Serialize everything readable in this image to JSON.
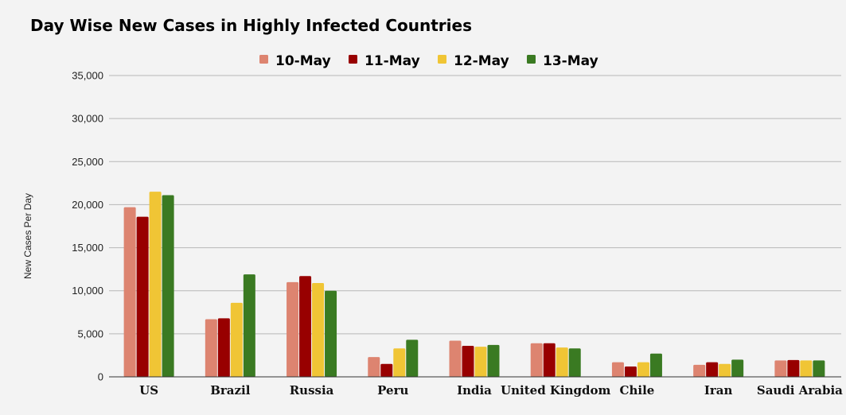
{
  "chart_data": {
    "type": "bar",
    "title": "Day Wise New Cases in Highly Infected Countries",
    "ylabel": "New Cases Per Day",
    "xlabel": "",
    "ylim": [
      0,
      35000
    ],
    "yticks": [
      0,
      5000,
      10000,
      15000,
      20000,
      25000,
      30000,
      35000
    ],
    "ytick_labels": [
      "0",
      "5,000",
      "10,000",
      "15,000",
      "20,000",
      "25,000",
      "30,000",
      "35,000"
    ],
    "grid": true,
    "legend_position": "top",
    "categories": [
      "US",
      "Brazil",
      "Russia",
      "Peru",
      "India",
      "United Kingdom",
      "Chile",
      "Iran",
      "Saudi Arabia"
    ],
    "series": [
      {
        "name": "10-May",
        "color": "#dd8470",
        "values": [
          19700,
          6700,
          11000,
          2300,
          4200,
          3900,
          1700,
          1400,
          1900
        ]
      },
      {
        "name": "11-May",
        "color": "#980000",
        "values": [
          18600,
          6800,
          11700,
          1500,
          3600,
          3900,
          1200,
          1700,
          1950
        ]
      },
      {
        "name": "12-May",
        "color": "#f0c535",
        "values": [
          21500,
          8600,
          10900,
          3300,
          3500,
          3400,
          1700,
          1500,
          1900
        ]
      },
      {
        "name": "13-May",
        "color": "#3a7a22",
        "values": [
          21100,
          11900,
          10000,
          4300,
          3700,
          3300,
          2700,
          2000,
          1900
        ]
      }
    ]
  }
}
